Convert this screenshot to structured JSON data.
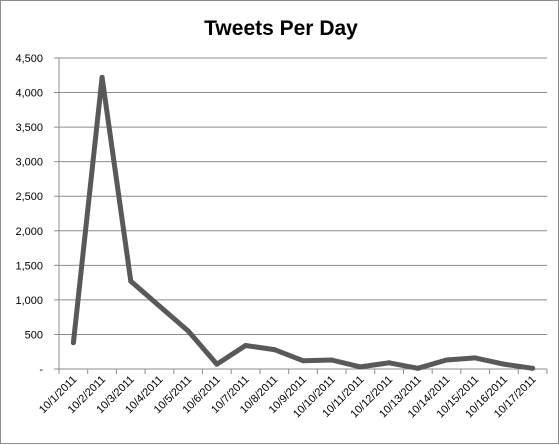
{
  "chart_data": {
    "type": "line",
    "title": "Tweets Per Day",
    "xlabel": "",
    "ylabel": "",
    "ylim": [
      0,
      4500
    ],
    "yticks": [
      0,
      500,
      1000,
      1500,
      2000,
      2500,
      3000,
      3500,
      4000,
      4500
    ],
    "ytick_labels": [
      "-",
      "500",
      "1,000",
      "1,500",
      "2,000",
      "2,500",
      "3,000",
      "3,500",
      "4,000",
      "4,500"
    ],
    "grid": true,
    "legend": "none",
    "line_color": "#595959",
    "categories": [
      "10/1/2011",
      "10/2/2011",
      "10/3/2011",
      "10/4/2011",
      "10/5/2011",
      "10/6/2011",
      "10/7/2011",
      "10/8/2011",
      "10/9/2011",
      "10/10/2011",
      "10/11/2011",
      "10/12/2011",
      "10/13/2011",
      "10/14/2011",
      "10/15/2011",
      "10/16/2011",
      "10/17/2011"
    ],
    "values": [
      380,
      4220,
      1270,
      910,
      550,
      70,
      340,
      280,
      120,
      130,
      30,
      90,
      10,
      130,
      160,
      70,
      10
    ]
  }
}
